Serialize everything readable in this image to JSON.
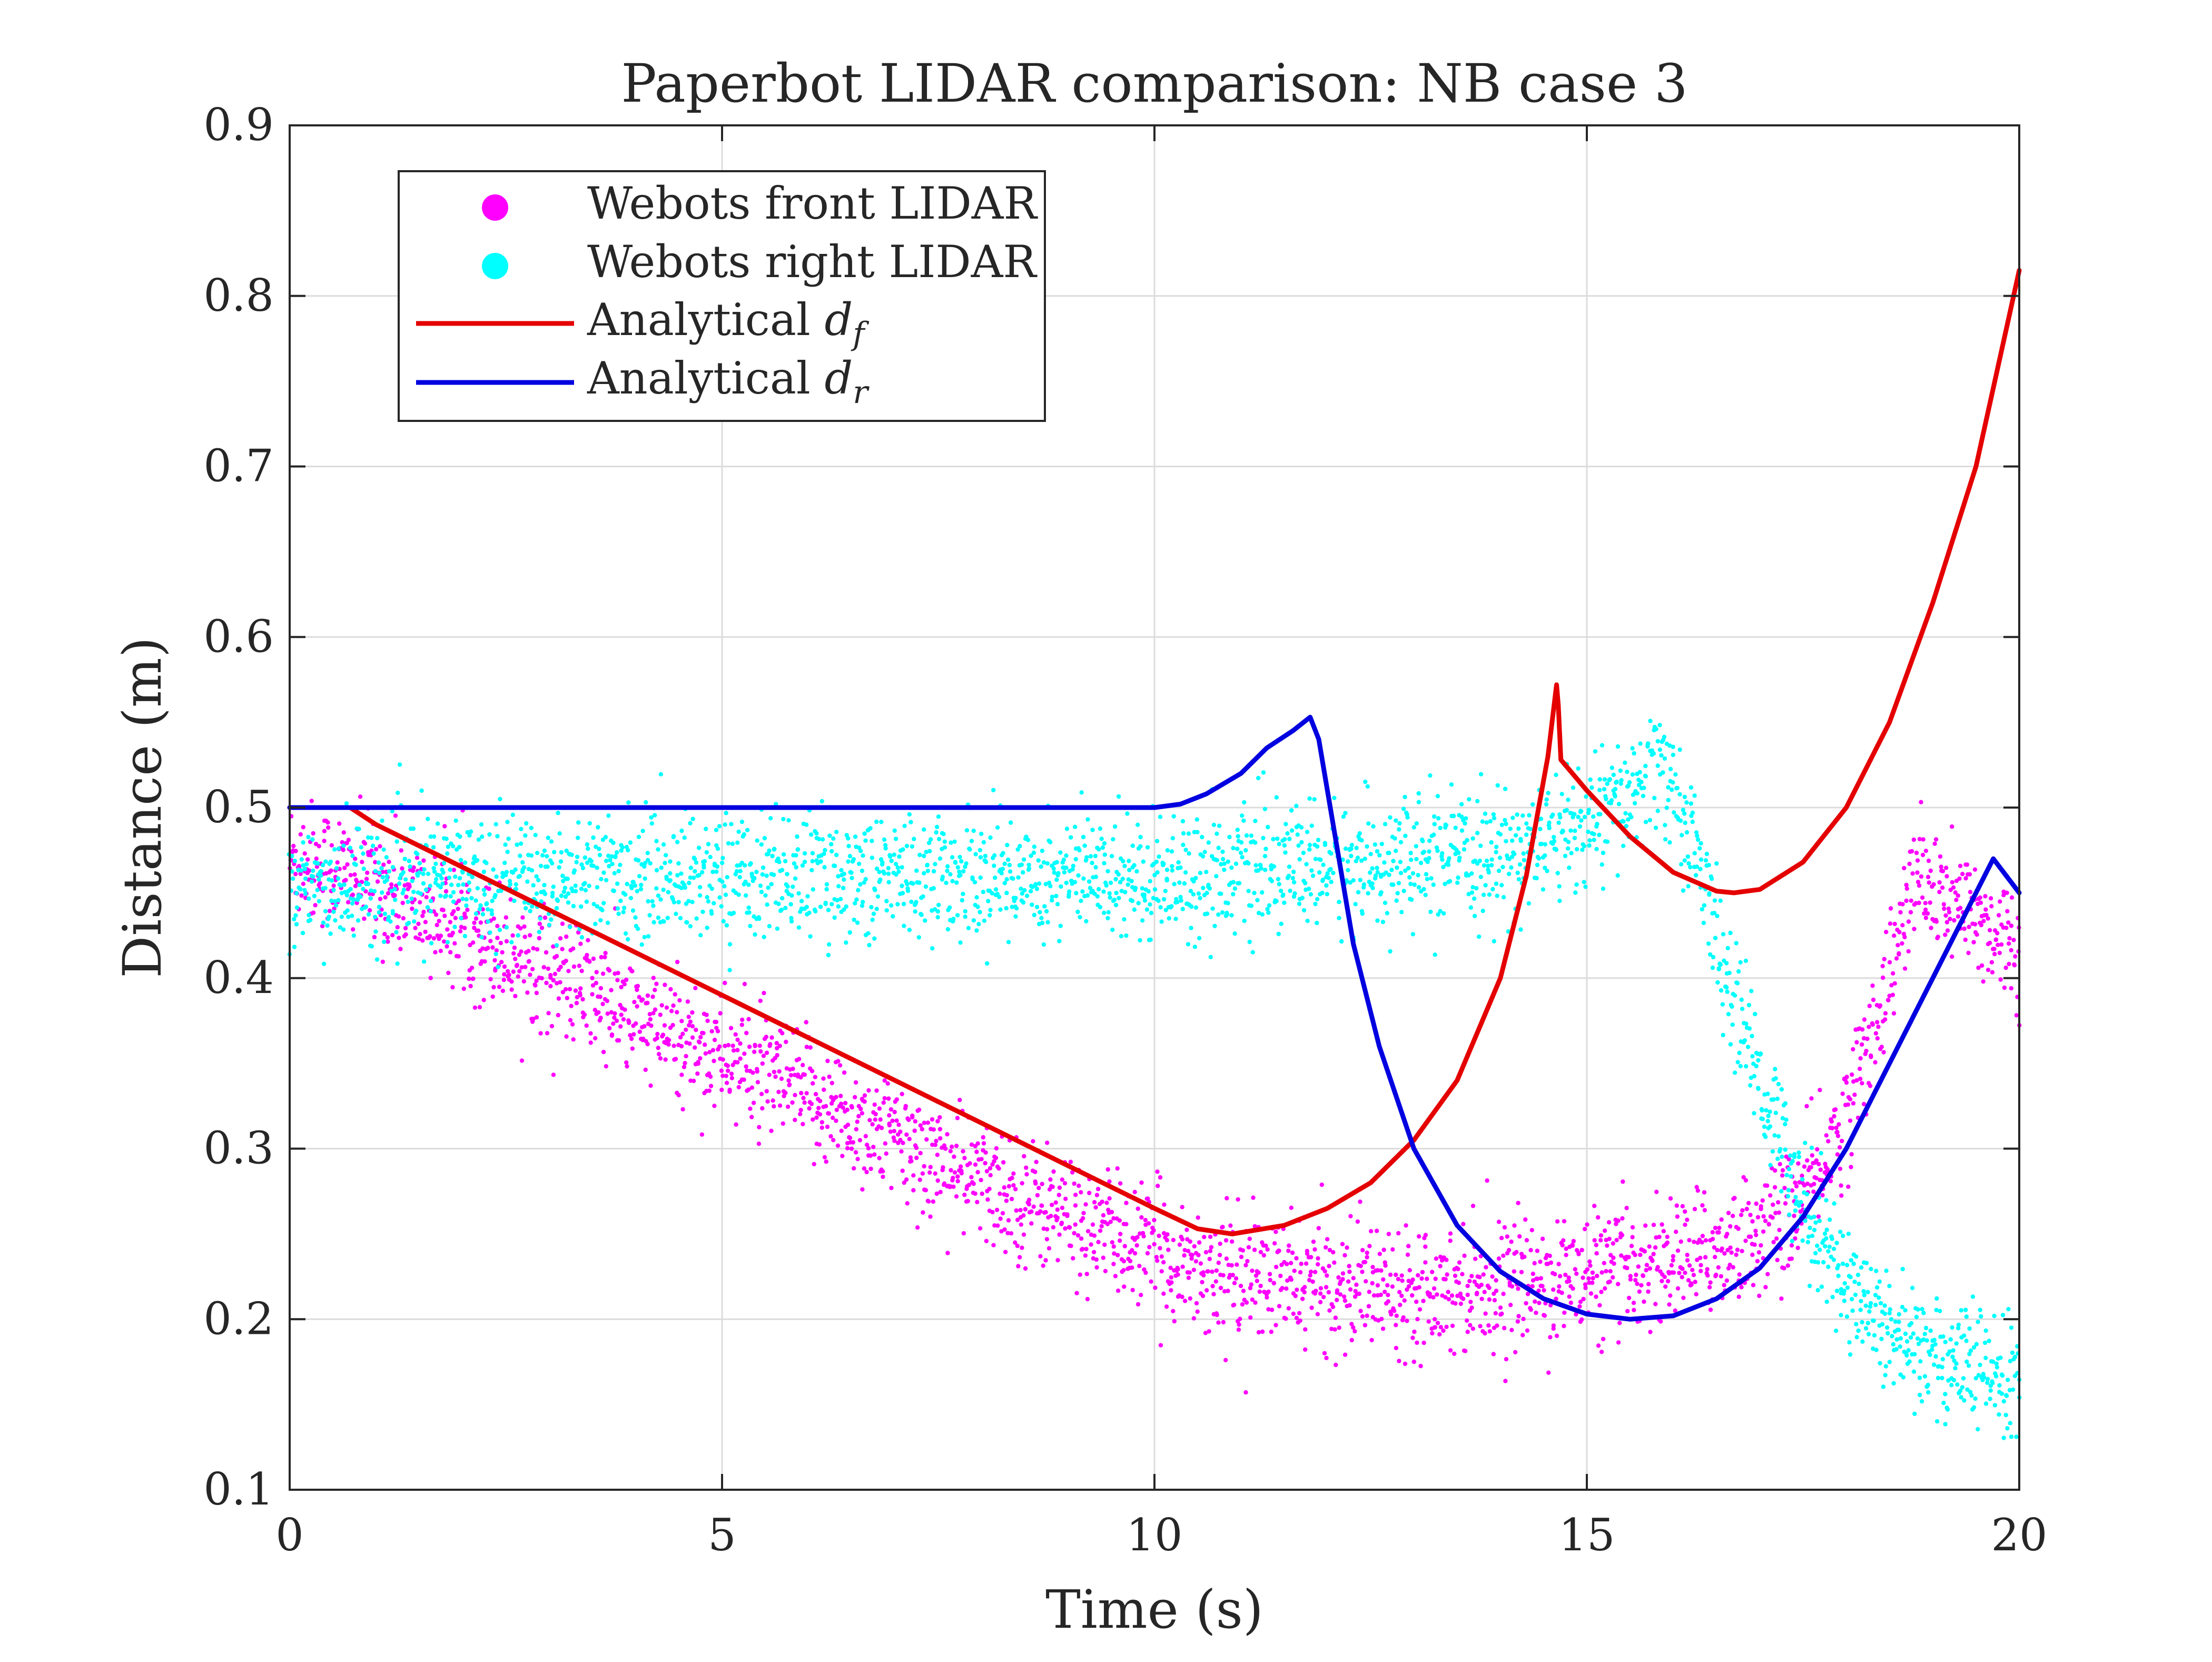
{
  "chart_data": {
    "type": "scatter",
    "title": "Paperbot LIDAR comparison: NB case 3",
    "xlabel": "Time (s)",
    "ylabel": "Distance (m)",
    "xlim": [
      0,
      20
    ],
    "ylim": [
      0.1,
      0.9
    ],
    "x_ticks": [
      0,
      5,
      10,
      15,
      20
    ],
    "x_tick_labels": [
      "0",
      "5",
      "10",
      "15",
      "20"
    ],
    "y_ticks": [
      0.1,
      0.2,
      0.3,
      0.4,
      0.5,
      0.6,
      0.7,
      0.8,
      0.9
    ],
    "y_tick_labels": [
      "0.1",
      "0.2",
      "0.3",
      "0.4",
      "0.5",
      "0.6",
      "0.7",
      "0.8",
      "0.9"
    ],
    "grid": true,
    "legend_position": "top-left",
    "series": [
      {
        "name": "Webots front LIDAR",
        "kind": "scatter",
        "color": "#ff00ff",
        "noise": 0.018,
        "x": [
          0,
          0.5,
          1,
          2,
          3,
          4,
          5,
          6,
          7,
          8,
          9,
          10,
          10.5,
          11,
          12,
          13,
          14,
          15,
          15.5,
          16,
          16.5,
          17,
          17.5,
          18,
          18.5,
          18.8,
          19,
          19.5,
          20
        ],
        "y": [
          0.47,
          0.465,
          0.455,
          0.43,
          0.405,
          0.375,
          0.355,
          0.33,
          0.305,
          0.28,
          0.26,
          0.24,
          0.23,
          0.225,
          0.22,
          0.22,
          0.22,
          0.225,
          0.23,
          0.235,
          0.24,
          0.25,
          0.27,
          0.32,
          0.4,
          0.46,
          0.45,
          0.435,
          0.42
        ]
      },
      {
        "name": "Webots right LIDAR",
        "kind": "scatter",
        "color": "#00ffff",
        "noise": 0.018,
        "x": [
          0,
          1,
          2,
          3,
          4,
          6,
          8,
          10,
          12,
          14,
          14.5,
          15,
          15.5,
          15.8,
          16,
          16.3,
          16.6,
          17,
          17.5,
          18,
          18.5,
          19,
          19.5,
          20
        ],
        "y": [
          0.45,
          0.455,
          0.46,
          0.46,
          0.46,
          0.46,
          0.46,
          0.46,
          0.465,
          0.47,
          0.48,
          0.49,
          0.505,
          0.525,
          0.51,
          0.47,
          0.4,
          0.34,
          0.27,
          0.22,
          0.195,
          0.18,
          0.17,
          0.16
        ]
      },
      {
        "name": "Analytical d_f",
        "legend_main": "Analytical ",
        "legend_math": "d",
        "legend_sub": "f",
        "kind": "line",
        "color": "#e50000",
        "x": [
          0,
          0.7,
          1,
          2,
          3,
          4,
          5,
          6,
          7,
          8,
          9,
          10,
          10.5,
          10.9,
          11.5,
          12,
          12.5,
          13,
          13.5,
          14,
          14.3,
          14.55,
          14.65,
          14.67,
          14.7,
          15,
          15.5,
          16,
          16.5,
          16.7,
          17,
          17.5,
          18,
          18.5,
          19,
          19.5,
          20
        ],
        "y": [
          0.5,
          0.5,
          0.49,
          0.465,
          0.44,
          0.415,
          0.39,
          0.365,
          0.34,
          0.315,
          0.29,
          0.265,
          0.253,
          0.25,
          0.255,
          0.265,
          0.28,
          0.305,
          0.34,
          0.4,
          0.46,
          0.53,
          0.572,
          0.56,
          0.528,
          0.51,
          0.483,
          0.462,
          0.451,
          0.45,
          0.452,
          0.468,
          0.5,
          0.55,
          0.62,
          0.7,
          0.815
        ]
      },
      {
        "name": "Analytical d_r",
        "legend_main": "Analytical ",
        "legend_math": "d",
        "legend_sub": "r",
        "kind": "line",
        "color": "#0000e0",
        "x": [
          0,
          2,
          4,
          6,
          8,
          10,
          10.3,
          10.6,
          11,
          11.3,
          11.6,
          11.8,
          11.9,
          12.1,
          12.3,
          12.6,
          13,
          13.5,
          14,
          14.5,
          15,
          15.5,
          16,
          16.5,
          17,
          17.5,
          18,
          18.5,
          19,
          19.5,
          19.7,
          20
        ],
        "y": [
          0.5,
          0.5,
          0.5,
          0.5,
          0.5,
          0.5,
          0.502,
          0.508,
          0.52,
          0.535,
          0.545,
          0.553,
          0.54,
          0.48,
          0.42,
          0.36,
          0.3,
          0.255,
          0.228,
          0.212,
          0.203,
          0.2,
          0.202,
          0.212,
          0.23,
          0.26,
          0.3,
          0.35,
          0.4,
          0.45,
          0.47,
          0.45
        ]
      }
    ]
  }
}
